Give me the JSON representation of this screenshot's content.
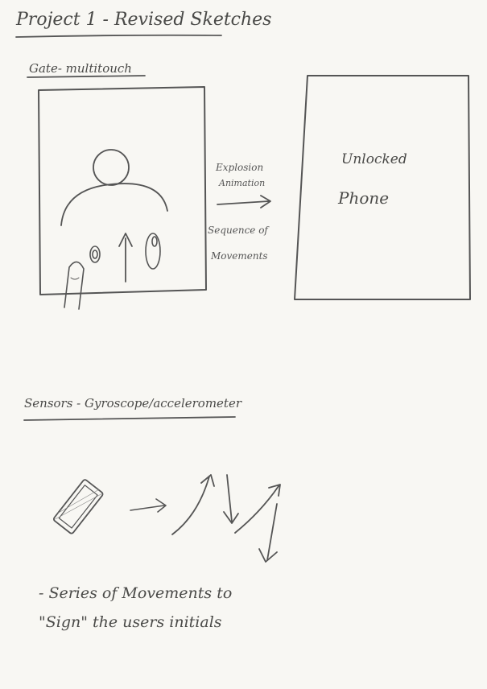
{
  "title": "Project 1 - Revised Sketches",
  "section1": {
    "heading": "Gate- multitouch",
    "arrow_label_line1": "Explosion",
    "arrow_label_line2": "Animation",
    "below_arrow_line1": "Sequence of",
    "below_arrow_line2": "Movements",
    "result_line1": "Unlocked",
    "result_line2": "Phone"
  },
  "section2": {
    "heading": "Sensors - Gyroscope/accelerometer",
    "note_line1": "- Series of Movements to",
    "note_line2": "\"Sign\" the users initials"
  },
  "colors": {
    "paper": "#f8f7f3",
    "pencil": "#4a4a48"
  }
}
